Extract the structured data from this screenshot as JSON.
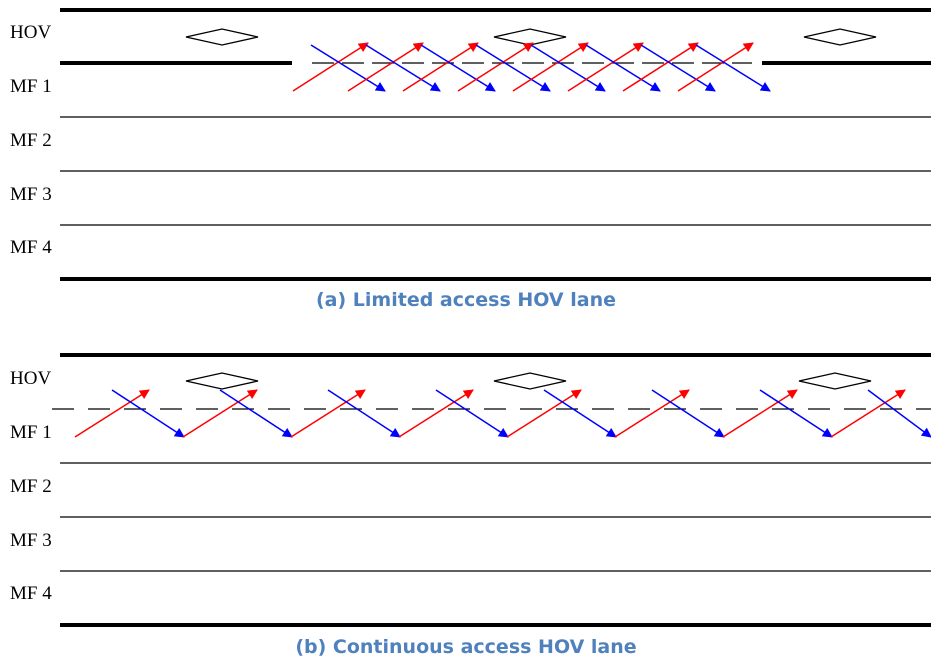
{
  "panels": [
    {
      "caption": "(a) Limited access HOV lane",
      "lanes": [
        "HOV",
        "MF 1",
        "MF 2",
        "MF 3",
        "MF 4"
      ]
    },
    {
      "caption": "(b) Continuous access HOV lane",
      "lanes": [
        "HOV",
        "MF 1",
        "MF 2",
        "MF 3",
        "MF 4"
      ]
    }
  ],
  "colors": {
    "merge_arrow": "#ff0000",
    "diverge_arrow": "#0000ff",
    "caption": "#4f81bd",
    "line": "#000000"
  },
  "icons": [
    "hov-diamond-icon",
    "merge-arrow-icon",
    "diverge-arrow-icon"
  ]
}
